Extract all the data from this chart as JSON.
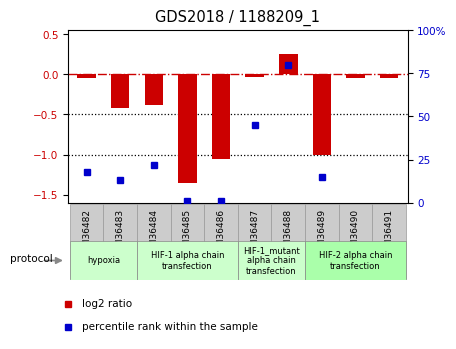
{
  "title": "GDS2018 / 1188209_1",
  "samples": [
    "GSM36482",
    "GSM36483",
    "GSM36484",
    "GSM36485",
    "GSM36486",
    "GSM36487",
    "GSM36488",
    "GSM36489",
    "GSM36490",
    "GSM36491"
  ],
  "log2_ratio": [
    -0.05,
    -0.42,
    -0.38,
    -1.35,
    -1.05,
    -0.03,
    0.25,
    -1.0,
    -0.05,
    -0.05
  ],
  "percentile_rank_vals": [
    18,
    13,
    22,
    1,
    1,
    45,
    80,
    15,
    null,
    null
  ],
  "ylim_left": [
    -1.6,
    0.55
  ],
  "ylim_right": [
    0,
    100
  ],
  "yticks_left": [
    -1.5,
    -1.0,
    -0.5,
    0.0,
    0.5
  ],
  "yticks_right": [
    0,
    25,
    50,
    75,
    100
  ],
  "ytick_labels_right": [
    "0",
    "25",
    "50",
    "75",
    "100%"
  ],
  "bar_color": "#cc0000",
  "dot_color": "#0000cc",
  "zero_line_color": "#cc0000",
  "grid_line_color": "#000000",
  "protocol_groups": [
    {
      "label": "hypoxia",
      "start": 0,
      "end": 1,
      "color": "#ccffcc"
    },
    {
      "label": "HIF-1 alpha chain\ntransfection",
      "start": 2,
      "end": 4,
      "color": "#ccffcc"
    },
    {
      "label": "HIF-1_mutant\nalpha chain\ntransfection",
      "start": 5,
      "end": 6,
      "color": "#ccffcc"
    },
    {
      "label": "HIF-2 alpha chain\ntransfection",
      "start": 7,
      "end": 9,
      "color": "#aaffaa"
    }
  ],
  "legend_items": [
    {
      "label": "log2 ratio",
      "color": "#cc0000"
    },
    {
      "label": "percentile rank within the sample",
      "color": "#0000cc"
    }
  ],
  "background_color": "#ffffff"
}
